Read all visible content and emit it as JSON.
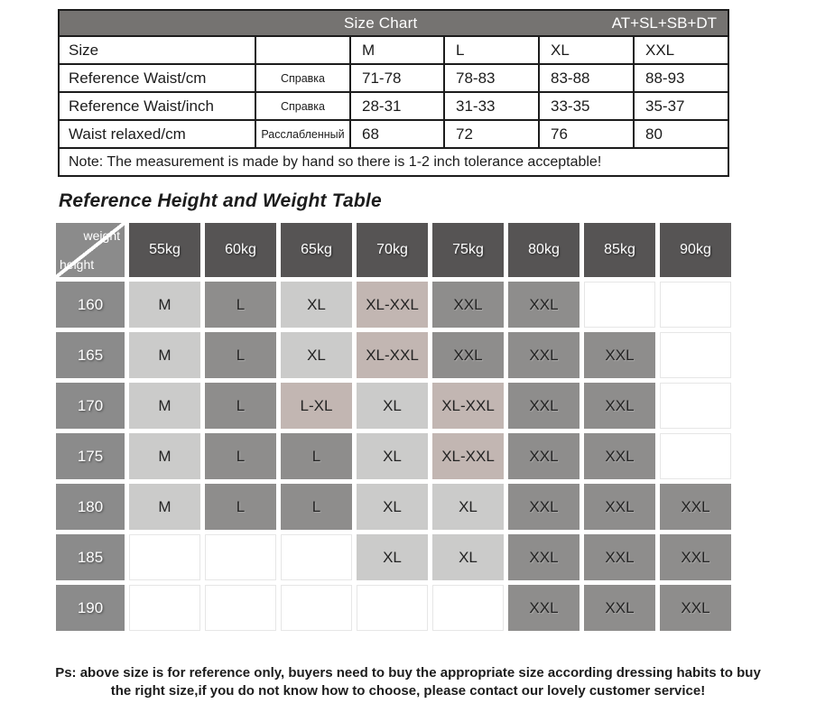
{
  "size_chart": {
    "title": "Size Chart",
    "code": "AT+SL+SB+DT",
    "rows": [
      {
        "label": "Size",
        "annotation": "",
        "values": [
          "M",
          "L",
          "XL",
          "XXL"
        ]
      },
      {
        "label": "Reference Waist/cm",
        "annotation": "Справка",
        "values": [
          "71-78",
          "78-83",
          "83-88",
          "88-93"
        ]
      },
      {
        "label": "Reference Waist/inch",
        "annotation": "Справка",
        "values": [
          "28-31",
          "31-33",
          "33-35",
          "35-37"
        ]
      },
      {
        "label": "Waist relaxed/cm",
        "annotation": "Расслабленный",
        "values": [
          "68",
          "72",
          "76",
          "80"
        ]
      }
    ],
    "note": "Note: The measurement is made by hand so there is 1-2 inch tolerance acceptable!"
  },
  "height_weight": {
    "heading": "Reference Height and Weight Table",
    "corner": {
      "top": "weight",
      "bottom": "height"
    },
    "weights": [
      "55kg",
      "60kg",
      "65kg",
      "70kg",
      "75kg",
      "80kg",
      "85kg",
      "90kg"
    ],
    "rows": [
      {
        "height": "160",
        "cells": [
          "M",
          "L",
          "XL",
          "XL-XXL",
          "XXL",
          "XXL",
          "",
          ""
        ]
      },
      {
        "height": "165",
        "cells": [
          "M",
          "L",
          "XL",
          "XL-XXL",
          "XXL",
          "XXL",
          "XXL",
          ""
        ]
      },
      {
        "height": "170",
        "cells": [
          "M",
          "L",
          "L-XL",
          "XL",
          "XL-XXL",
          "XXL",
          "XXL",
          ""
        ]
      },
      {
        "height": "175",
        "cells": [
          "M",
          "L",
          "L",
          "XL",
          "XL-XXL",
          "XXL",
          "XXL",
          ""
        ]
      },
      {
        "height": "180",
        "cells": [
          "M",
          "L",
          "L",
          "XL",
          "XL",
          "XXL",
          "XXL",
          "XXL"
        ]
      },
      {
        "height": "185",
        "cells": [
          "",
          "",
          "",
          "XL",
          "XL",
          "XXL",
          "XXL",
          "XXL"
        ]
      },
      {
        "height": "190",
        "cells": [
          "",
          "",
          "",
          "",
          "",
          "XXL",
          "XXL",
          "XXL"
        ]
      }
    ]
  },
  "footer": {
    "line1": "Ps: above size is for reference only, buyers need to buy the appropriate size according dressing habits to buy",
    "line2": "the right size,if you do not know how to choose, please contact our lovely customer service!"
  },
  "colors": {
    "header_bar": "#757371",
    "table_border": "#1c1c1c",
    "weight_header": "#565454",
    "corner_cell": "#8b8b8b",
    "height_header": "#8b8b8b",
    "cell_light": "#cbcbca",
    "cell_mid": "#8e8d8c",
    "cell_combo": "#c2b6b2",
    "cell_empty": "#ffffff"
  }
}
